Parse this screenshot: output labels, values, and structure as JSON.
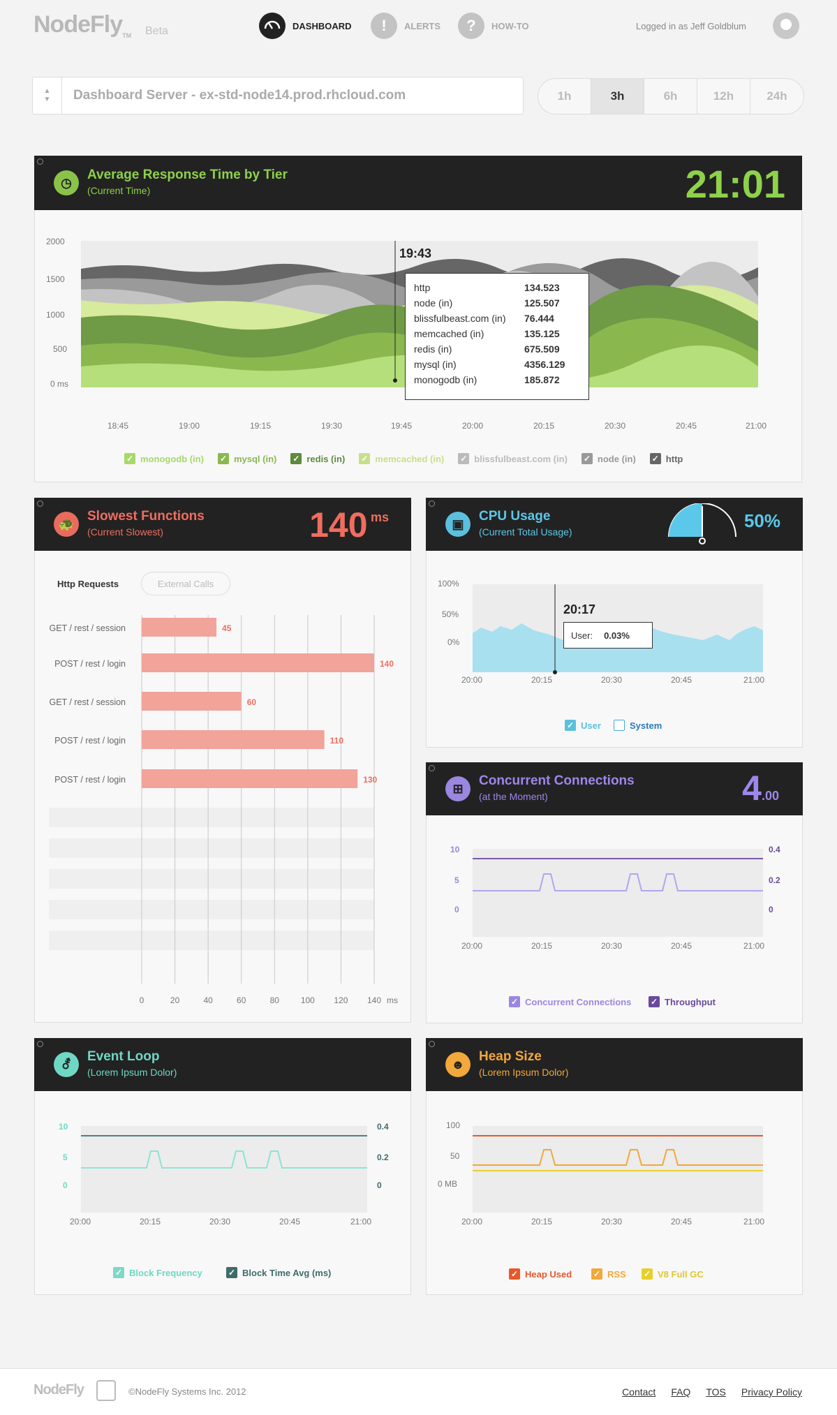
{
  "app": {
    "logo": "NodeFly",
    "logo_tm": "TM",
    "beta": "Beta"
  },
  "nav": [
    {
      "label": "DASHBOARD",
      "icon": "gauge-icon",
      "active": true
    },
    {
      "label": "ALERTS",
      "icon": "exclamation-icon"
    },
    {
      "label": "HOW-TO",
      "icon": "question-icon"
    }
  ],
  "user": {
    "logged_in": "Logged in as Jeff Goldblum"
  },
  "server": {
    "name": "Dashboard Server - ex-std-node14.prod.rhcloud.com"
  },
  "ranges": [
    "1h",
    "3h",
    "6h",
    "12h",
    "24h"
  ],
  "active_range": "3h",
  "panels": {
    "response": {
      "title": "Average Response Time by Tier",
      "subtitle": "(Current Time)",
      "value": "21:01",
      "yticks": [
        "2000",
        "1500",
        "1000",
        "500",
        "0 ms"
      ],
      "xticks": [
        "18:45",
        "19:00",
        "19:15",
        "19:30",
        "19:45",
        "20:00",
        "20:15",
        "20:30",
        "20:45",
        "21:00"
      ],
      "tooltip": {
        "time": "19:43",
        "rows": [
          {
            "name": "http",
            "value": "134.523"
          },
          {
            "name": "node (in)",
            "value": "125.507"
          },
          {
            "name": "blissfulbeast.com (in)",
            "value": "76.444"
          },
          {
            "name": "memcached (in)",
            "value": "135.125"
          },
          {
            "name": "redis (in)",
            "value": "675.509"
          },
          {
            "name": "mysql (in)",
            "value": "4356.129"
          },
          {
            "name": "monogodb (in)",
            "value": "185.872"
          }
        ]
      },
      "legend": [
        {
          "label": "monogodb (in)",
          "color": "#a6d96a"
        },
        {
          "label": "mysql (in)",
          "color": "#8ab84f"
        },
        {
          "label": "redis (in)",
          "color": "#5e8a3c"
        },
        {
          "label": "memcached (in)",
          "color": "#c6e08a"
        },
        {
          "label": "blissfulbeast.com (in)",
          "color": "#bbbbbb"
        },
        {
          "label": "node (in)",
          "color": "#999999"
        },
        {
          "label": "http",
          "color": "#666666"
        }
      ]
    },
    "slowest": {
      "title": "Slowest Functions",
      "subtitle": "(Current Slowest)",
      "value": "140",
      "unit": "ms",
      "tabs": [
        "Http Requests",
        "External Calls"
      ],
      "xticks": [
        "0",
        "20",
        "40",
        "60",
        "80",
        "100",
        "120",
        "140"
      ],
      "xunit": "ms"
    },
    "cpu": {
      "title": "CPU Usage",
      "subtitle": "(Current Total Usage)",
      "value": "50%",
      "yticks": [
        "100%",
        "50%",
        "0%"
      ],
      "xticks": [
        "20:00",
        "20:15",
        "20:30",
        "20:45",
        "21:00"
      ],
      "tooltip": {
        "time": "20:17",
        "label": "User:",
        "value": "0.03%"
      },
      "legend": [
        {
          "label": "User",
          "color": "#5bc0de",
          "checked": true
        },
        {
          "label": "System",
          "color": "#2b7cb5",
          "checked": false
        }
      ]
    },
    "connections": {
      "title": "Concurrent Connections",
      "subtitle": "(at the Moment)",
      "value": "4",
      "value_dec": ".00",
      "yticks_left": [
        "10",
        "5",
        "0"
      ],
      "yticks_right": [
        "0.4",
        "0.2",
        "0"
      ],
      "xticks": [
        "20:00",
        "20:15",
        "20:30",
        "20:45",
        "21:00"
      ],
      "legend": [
        {
          "label": "Concurrent Connections",
          "color": "#9b86e0"
        },
        {
          "label": "Throughput",
          "color": "#6a4a9c"
        }
      ]
    },
    "eventloop": {
      "title": "Event Loop",
      "subtitle": "(Lorem Ipsum Dolor)",
      "yticks_left": [
        "10",
        "5",
        "0"
      ],
      "yticks_right": [
        "0.4",
        "0.2",
        "0"
      ],
      "xticks": [
        "20:00",
        "20:15",
        "20:30",
        "20:45",
        "21:00"
      ],
      "legend": [
        {
          "label": "Block Frequency",
          "color": "#7fd8c8"
        },
        {
          "label": "Block Time Avg (ms)",
          "color": "#3f6b6b"
        }
      ]
    },
    "heap": {
      "title": "Heap Size",
      "subtitle": "(Lorem Ipsum Dolor)",
      "yticks": [
        "100",
        "50",
        "0 MB"
      ],
      "xticks": [
        "20:00",
        "20:15",
        "20:30",
        "20:45",
        "21:00"
      ],
      "legend": [
        {
          "label": "Heap Used",
          "color": "#e8582a"
        },
        {
          "label": "RSS",
          "color": "#f2a83a"
        },
        {
          "label": "V8 Full GC",
          "color": "#e8cf2a"
        }
      ]
    }
  },
  "chart_data": [
    {
      "type": "bar",
      "title": "Slowest Functions",
      "categories": [
        "GET / rest / session",
        "POST / rest / login",
        "GET / rest / session",
        "POST / rest / login",
        "POST / rest / login"
      ],
      "values": [
        45,
        140,
        60,
        110,
        130
      ],
      "xlim": [
        0,
        140
      ]
    }
  ],
  "footer": {
    "logo": "NodeFly",
    "copyright": "©NodeFly Systems Inc. 2012",
    "links": [
      "Contact",
      "FAQ",
      "TOS",
      "Privacy Policy"
    ]
  }
}
